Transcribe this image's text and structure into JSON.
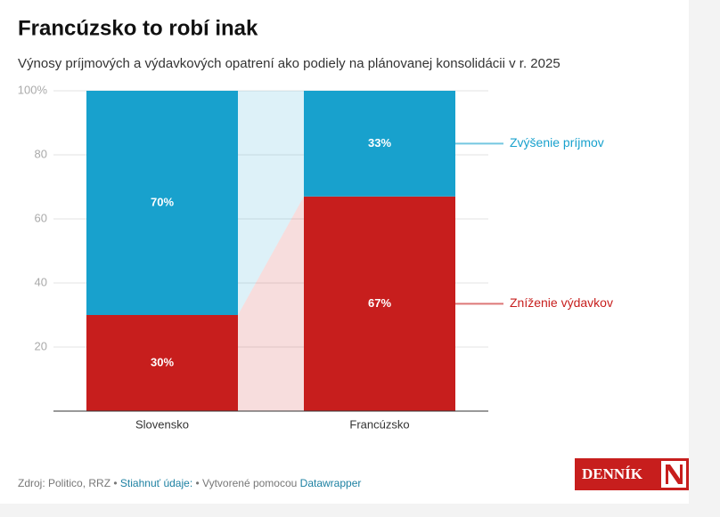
{
  "chart_data": {
    "type": "stacked_bar",
    "title": "Francúzsko to robí inak",
    "subtitle": "Výnosy príjmových a výdavkových opatrení ako podiely na plánovanej konsolidácii v r. 2025",
    "categories": [
      "Slovensko",
      "Francúzsko"
    ],
    "series": [
      {
        "name": "Zníženie výdavkov",
        "color": "#c71e1d",
        "values": [
          30,
          67
        ],
        "value_labels": [
          "30%",
          "67%"
        ]
      },
      {
        "name": "Zvýšenie príjmov",
        "color": "#18a1cd",
        "values": [
          70,
          33
        ],
        "value_labels": [
          "70%",
          "33%"
        ]
      }
    ],
    "ylim": [
      0,
      100
    ],
    "yticks": [
      20,
      40,
      60,
      80,
      {
        "value": 100,
        "label": "100%"
      }
    ],
    "grid": true,
    "legend": "right"
  },
  "footer": {
    "source": "Zdroj: Politico, RRZ",
    "separator": "•",
    "download": "Stiahnuť údaje:",
    "created": "• Vytvorené pomocou",
    "tool": "Datawrapper",
    "logo": "DENNÍK"
  }
}
